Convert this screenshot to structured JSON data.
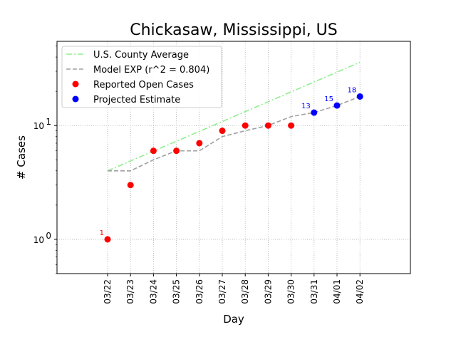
{
  "chart_data": {
    "type": "line",
    "title": "Chickasaw, Mississippi, US",
    "xlabel": "Day",
    "ylabel": "# Cases",
    "yscale": "log",
    "ylim": [
      0.5,
      55
    ],
    "yticks": [
      {
        "value": 1,
        "base": "10",
        "exp": "0"
      },
      {
        "value": 10,
        "base": "10",
        "exp": "1"
      }
    ],
    "categories": [
      "03/22",
      "03/23",
      "03/24",
      "03/25",
      "03/26",
      "03/27",
      "03/28",
      "03/29",
      "03/30",
      "03/31",
      "04/01",
      "04/02"
    ],
    "grid": true,
    "legend_position": "top-left",
    "series": [
      {
        "name": "U.S. County Average",
        "style": "dashdot",
        "color": "#90ee90",
        "x": [
          "03/22",
          "04/02"
        ],
        "y": [
          4,
          36
        ]
      },
      {
        "name": "Model EXP (r^2 = 0.804)",
        "style": "dashed",
        "color": "#a0a0a0",
        "x": [
          "03/22",
          "03/23",
          "03/24",
          "03/25",
          "03/26",
          "03/27",
          "03/28",
          "03/29",
          "03/30",
          "03/31",
          "04/01",
          "04/02"
        ],
        "y": [
          4,
          4,
          5,
          6,
          6,
          8,
          9,
          10,
          12,
          13,
          15,
          18
        ]
      },
      {
        "name": "Reported Open Cases",
        "style": "markers",
        "color": "#ff0000",
        "x": [
          "03/22",
          "03/23",
          "03/24",
          "03/25",
          "03/26",
          "03/27",
          "03/28",
          "03/29",
          "03/30"
        ],
        "y": [
          1,
          3,
          6,
          6,
          7,
          9,
          10,
          10,
          10
        ]
      },
      {
        "name": "Projected Estimate",
        "style": "markers",
        "color": "#0000ff",
        "x": [
          "03/31",
          "04/01",
          "04/02"
        ],
        "y": [
          13,
          15,
          18
        ]
      }
    ],
    "annotations": [
      {
        "x": "03/22",
        "y": 1,
        "text": "1",
        "color": "#ff0000"
      },
      {
        "x": "03/31",
        "y": 13,
        "text": "13",
        "color": "#0000ff"
      },
      {
        "x": "04/01",
        "y": 15,
        "text": "15",
        "color": "#0000ff"
      },
      {
        "x": "04/02",
        "y": 18,
        "text": "18",
        "color": "#0000ff"
      }
    ]
  }
}
